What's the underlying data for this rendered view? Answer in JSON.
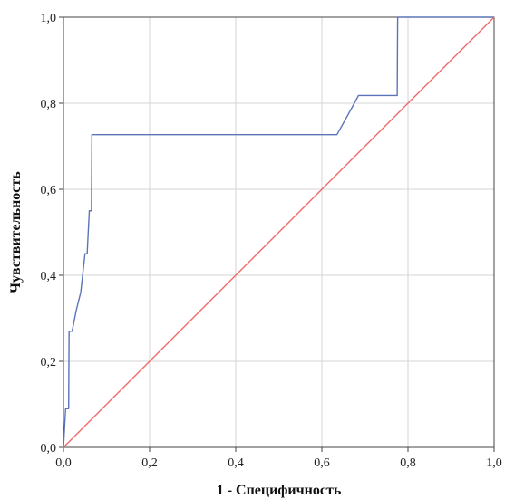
{
  "chart_data": {
    "type": "line",
    "xlabel": "1 - Специфичность",
    "ylabel": "Чувствительность",
    "xlim": [
      0.0,
      1.0
    ],
    "ylim": [
      0.0,
      1.0
    ],
    "grid": true,
    "x_ticks": [
      0.0,
      0.2,
      0.4,
      0.6,
      0.8,
      1.0
    ],
    "y_ticks": [
      0.0,
      0.2,
      0.4,
      0.6,
      0.8,
      1.0
    ],
    "x_tick_labels": [
      "0,0",
      "0,2",
      "0,4",
      "0,6",
      "0,8",
      "1,0"
    ],
    "y_tick_labels": [
      "0,0",
      "0,2",
      "0,4",
      "0,6",
      "0,8",
      "1,0"
    ],
    "series": [
      {
        "color": "#5b74b8",
        "x": [
          0.0,
          0.005,
          0.006,
          0.012,
          0.013,
          0.02,
          0.03,
          0.04,
          0.05,
          0.055,
          0.06,
          0.065,
          0.066,
          0.635,
          0.67,
          0.685,
          0.775,
          0.776,
          1.0
        ],
        "y": [
          0.0,
          0.09,
          0.09,
          0.09,
          0.27,
          0.27,
          0.32,
          0.36,
          0.45,
          0.45,
          0.55,
          0.55,
          0.727,
          0.727,
          0.79,
          0.818,
          0.818,
          1.0,
          1.0
        ]
      },
      {
        "color": "#ee6b6b",
        "x": [
          0.0,
          1.0
        ],
        "y": [
          0.0,
          1.0
        ]
      }
    ]
  }
}
